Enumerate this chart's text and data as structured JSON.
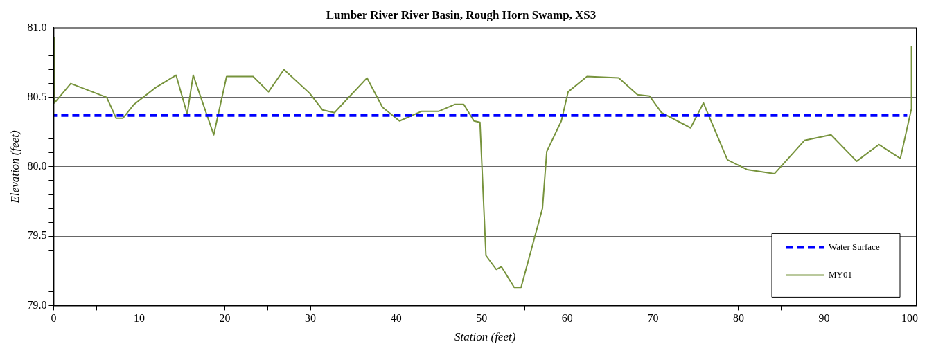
{
  "chart_data": {
    "type": "line",
    "title": "Lumber River River Basin, Rough Horn Swamp, XS3",
    "xlabel": "Station (feet)",
    "ylabel": "Elevation (feet)",
    "xlim": [
      0,
      100.8
    ],
    "ylim": [
      79.0,
      81.0
    ],
    "xticks": [
      0,
      {
        "value": 5,
        "label": null
      },
      10,
      {
        "value": 15,
        "label": null
      },
      20,
      {
        "value": 25,
        "label": null
      },
      30,
      {
        "value": 35,
        "label": null
      },
      40,
      {
        "value": 45,
        "label": null
      },
      50,
      {
        "value": 55,
        "label": null
      },
      60,
      {
        "value": 65,
        "label": null
      },
      70,
      {
        "value": 75,
        "label": null
      },
      80,
      {
        "value": 85,
        "label": null
      },
      90,
      {
        "value": 95,
        "label": null
      },
      100
    ],
    "yticks": [
      {
        "value": 79.0,
        "label": "79.0"
      },
      {
        "value": 79.1,
        "label": null
      },
      {
        "value": 79.2,
        "label": null
      },
      {
        "value": 79.3,
        "label": null
      },
      {
        "value": 79.4,
        "label": null
      },
      {
        "value": 79.5,
        "label": "79.5"
      },
      {
        "value": 79.6,
        "label": null
      },
      {
        "value": 79.7,
        "label": null
      },
      {
        "value": 79.8,
        "label": null
      },
      {
        "value": 79.9,
        "label": null
      },
      {
        "value": 80.0,
        "label": "80.0"
      },
      {
        "value": 80.1,
        "label": null
      },
      {
        "value": 80.2,
        "label": null
      },
      {
        "value": 80.3,
        "label": null
      },
      {
        "value": 80.4,
        "label": null
      },
      {
        "value": 80.5,
        "label": "80.5"
      },
      {
        "value": 80.6,
        "label": null
      },
      {
        "value": 80.7,
        "label": null
      },
      {
        "value": 80.8,
        "label": null
      },
      {
        "value": 80.9,
        "label": null
      },
      {
        "value": 81.0,
        "label": "81.0"
      }
    ],
    "grid": "y",
    "legend": "bottom right",
    "marker": "none",
    "series": [
      {
        "name": "Water Surface",
        "color": "#0000ff",
        "line_style": "dashed",
        "x": [
          0,
          99.7
        ],
        "values": [
          80.37,
          80.37
        ]
      },
      {
        "name": "MY01",
        "color": "#77933c",
        "line_style": "solid",
        "x": [
          0.1,
          0.1,
          2.0,
          6.2,
          7.3,
          8.1,
          9.4,
          11.9,
          14.3,
          15.6,
          16.3,
          18.7,
          20.2,
          23.3,
          25.1,
          26.9,
          29.9,
          31.4,
          32.8,
          36.6,
          38.4,
          40.4,
          43.0,
          45.0,
          46.9,
          47.9,
          49.1,
          49.8,
          50.5,
          51.7,
          52.3,
          53.8,
          54.6,
          57.1,
          57.6,
          59.3,
          60.1,
          62.3,
          66.0,
          68.2,
          69.6,
          71.0,
          74.4,
          75.9,
          78.7,
          81.0,
          84.2,
          87.7,
          90.8,
          93.8,
          96.4,
          98.9,
          100.2,
          100.2
        ],
        "values": [
          80.93,
          80.46,
          80.6,
          80.5,
          80.35,
          80.35,
          80.45,
          80.57,
          80.66,
          80.38,
          80.66,
          80.23,
          80.65,
          80.65,
          80.54,
          80.7,
          80.53,
          80.41,
          80.39,
          80.64,
          80.43,
          80.33,
          80.4,
          80.4,
          80.45,
          80.45,
          80.33,
          80.32,
          79.36,
          79.26,
          79.28,
          79.13,
          79.13,
          79.7,
          80.11,
          80.33,
          80.54,
          80.65,
          80.64,
          80.52,
          80.51,
          80.39,
          80.28,
          80.46,
          80.05,
          79.98,
          79.95,
          80.19,
          80.23,
          80.04,
          80.16,
          80.06,
          80.42,
          80.87
        ]
      }
    ]
  }
}
